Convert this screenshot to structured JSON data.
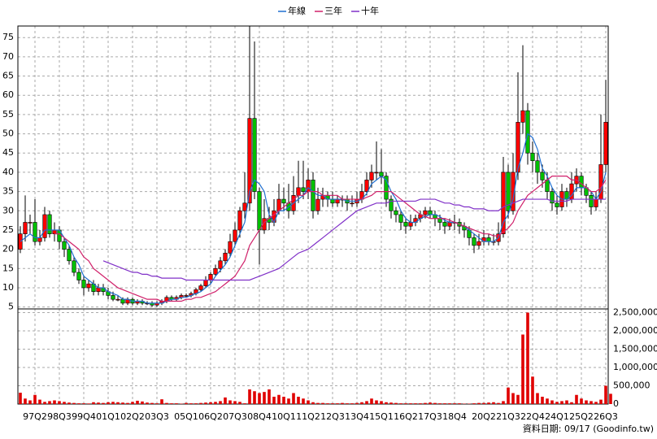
{
  "chart_data": {
    "type": "candlestick",
    "categories": [
      null,
      null,
      null,
      "97Q2",
      null,
      null,
      null,
      null,
      "98Q3",
      null,
      null,
      null,
      null,
      "99Q4",
      null,
      null,
      null,
      null,
      "01Q1",
      null,
      null,
      null,
      null,
      "02Q2",
      null,
      null,
      null,
      null,
      "03Q3",
      null,
      null,
      null,
      null,
      null,
      "05Q1",
      null,
      null,
      null,
      null,
      "06Q2",
      null,
      null,
      null,
      null,
      "07Q3",
      null,
      null,
      null,
      null,
      "08Q4",
      null,
      null,
      null,
      null,
      "10Q1",
      null,
      null,
      null,
      null,
      "11Q2",
      null,
      null,
      null,
      null,
      "12Q3",
      null,
      null,
      null,
      null,
      "13Q4",
      null,
      null,
      null,
      null,
      "15Q1",
      null,
      null,
      null,
      null,
      "16Q2",
      null,
      null,
      null,
      null,
      "17Q3",
      null,
      null,
      null,
      null,
      "18Q4",
      null,
      null,
      null,
      null,
      null,
      "20Q2",
      null,
      null,
      null,
      null,
      "21Q3",
      null,
      null,
      null,
      null,
      "22Q4",
      null,
      null,
      null,
      null,
      "24Q1",
      null,
      null,
      null,
      null,
      "25Q2",
      null,
      null,
      null,
      null,
      "26Q3"
    ],
    "ohlc": [
      [
        20,
        26,
        19,
        24
      ],
      [
        24,
        34,
        22,
        27
      ],
      [
        27,
        29,
        24,
        27
      ],
      [
        27,
        33,
        21,
        22
      ],
      [
        22,
        25,
        21,
        23
      ],
      [
        23,
        31,
        22,
        29
      ],
      [
        29,
        30,
        23,
        24
      ],
      [
        24,
        27,
        22,
        25
      ],
      [
        25,
        26,
        20,
        22
      ],
      [
        22,
        23,
        18,
        20
      ],
      [
        20,
        21,
        16,
        17
      ],
      [
        17,
        18,
        13,
        14
      ],
      [
        14,
        15,
        11,
        12
      ],
      [
        12,
        13,
        8,
        10
      ],
      [
        10,
        12,
        9,
        11
      ],
      [
        11,
        12,
        8,
        9
      ],
      [
        9,
        11,
        8,
        10
      ],
      [
        10,
        11,
        8,
        9
      ],
      [
        9,
        10,
        7,
        8
      ],
      [
        8,
        9,
        6.5,
        7
      ],
      [
        7,
        8,
        6.5,
        7
      ],
      [
        7,
        7.5,
        5.5,
        6
      ],
      [
        6,
        7.5,
        5.5,
        7
      ],
      [
        7,
        7.5,
        5.5,
        6
      ],
      [
        6,
        7,
        5.5,
        6.5
      ],
      [
        6.5,
        7,
        5.5,
        6
      ],
      [
        6,
        6.5,
        5.5,
        6
      ],
      [
        6,
        6.5,
        5,
        5.5
      ],
      [
        5.5,
        6.5,
        5,
        6
      ],
      [
        6,
        7,
        5.5,
        6.5
      ],
      [
        6.5,
        8,
        6,
        7.5
      ],
      [
        7.5,
        8,
        6.5,
        7
      ],
      [
        7,
        8,
        6.5,
        7.5
      ],
      [
        7.5,
        8.5,
        7,
        8
      ],
      [
        8,
        8.5,
        7.5,
        8
      ],
      [
        8,
        9,
        7.5,
        8.5
      ],
      [
        8.5,
        10,
        8,
        9.5
      ],
      [
        9.5,
        11,
        9,
        10.5
      ],
      [
        10.5,
        13,
        10,
        12
      ],
      [
        12,
        14,
        11,
        13.5
      ],
      [
        13.5,
        16,
        13,
        15
      ],
      [
        15,
        18,
        14,
        17
      ],
      [
        17,
        20,
        16,
        19
      ],
      [
        19,
        24,
        18,
        22
      ],
      [
        22,
        27,
        21,
        25
      ],
      [
        25,
        31,
        23,
        30
      ],
      [
        30,
        40,
        28,
        32
      ],
      [
        32,
        78,
        30,
        54
      ],
      [
        54,
        74,
        33,
        35
      ],
      [
        35,
        36,
        16,
        25
      ],
      [
        25,
        33,
        24,
        28
      ],
      [
        28,
        31,
        25,
        27
      ],
      [
        27,
        33,
        26,
        30
      ],
      [
        30,
        37,
        29,
        33
      ],
      [
        33,
        36,
        30,
        32
      ],
      [
        32,
        37,
        28,
        30
      ],
      [
        30,
        39,
        29,
        34
      ],
      [
        34,
        43,
        32,
        36
      ],
      [
        36,
        43,
        33,
        35
      ],
      [
        35,
        41,
        33,
        38
      ],
      [
        38,
        40,
        28,
        30
      ],
      [
        30,
        36,
        29,
        33
      ],
      [
        33,
        36,
        31,
        34
      ],
      [
        34,
        35,
        31,
        33
      ],
      [
        33,
        35,
        31,
        32
      ],
      [
        32,
        34,
        31,
        33
      ],
      [
        33,
        34,
        31,
        33
      ],
      [
        33,
        34,
        30,
        32
      ],
      [
        32,
        34,
        31,
        32
      ],
      [
        32,
        35,
        31,
        33
      ],
      [
        33,
        37,
        32,
        35
      ],
      [
        35,
        40,
        34,
        38
      ],
      [
        38,
        42,
        36,
        40
      ],
      [
        40,
        48,
        38,
        40
      ],
      [
        40,
        46,
        37,
        39
      ],
      [
        39,
        40,
        31,
        33
      ],
      [
        33,
        34,
        28,
        30
      ],
      [
        30,
        31,
        27,
        29
      ],
      [
        29,
        30,
        25,
        27
      ],
      [
        27,
        28,
        24,
        26
      ],
      [
        26,
        29,
        25,
        27
      ],
      [
        27,
        29,
        26,
        28
      ],
      [
        28,
        30,
        27,
        29
      ],
      [
        29,
        31,
        28,
        30
      ],
      [
        30,
        31,
        28,
        29
      ],
      [
        29,
        30,
        26,
        28
      ],
      [
        28,
        29,
        25,
        27
      ],
      [
        27,
        28,
        24,
        26
      ],
      [
        26,
        28,
        25,
        27
      ],
      [
        27,
        29,
        25,
        27
      ],
      [
        27,
        28,
        24,
        26
      ],
      [
        26,
        27,
        23,
        25
      ],
      [
        25,
        26,
        21,
        23
      ],
      [
        23,
        24,
        19,
        21
      ],
      [
        21,
        24,
        20,
        22
      ],
      [
        22,
        25,
        21,
        23
      ],
      [
        23,
        24,
        21,
        22
      ],
      [
        22,
        24,
        21,
        22
      ],
      [
        22,
        27,
        21,
        24
      ],
      [
        24,
        44,
        23,
        40
      ],
      [
        40,
        42,
        28,
        30
      ],
      [
        30,
        45,
        29,
        40
      ],
      [
        40,
        66,
        38,
        53
      ],
      [
        53,
        73,
        50,
        56
      ],
      [
        56,
        58,
        42,
        45
      ],
      [
        45,
        48,
        40,
        43
      ],
      [
        43,
        45,
        37,
        40
      ],
      [
        40,
        42,
        36,
        38
      ],
      [
        38,
        40,
        33,
        35
      ],
      [
        35,
        36,
        30,
        32
      ],
      [
        32,
        34,
        29,
        31
      ],
      [
        31,
        37,
        30,
        35
      ],
      [
        35,
        36,
        31,
        33
      ],
      [
        33,
        40,
        32,
        37
      ],
      [
        37,
        41,
        35,
        39
      ],
      [
        39,
        40,
        34,
        36
      ],
      [
        36,
        37,
        32,
        34
      ],
      [
        34,
        35,
        29,
        31
      ],
      [
        31,
        35,
        30,
        33
      ],
      [
        33,
        55,
        32,
        42
      ],
      [
        42,
        64,
        40,
        53
      ]
    ],
    "up_color": "#ff0000",
    "down_color": "#00c000",
    "series": [
      {
        "name": "年線",
        "color": "#1f6fd0",
        "values": [
          22,
          23,
          24,
          23,
          23,
          25,
          25,
          25,
          25,
          23,
          21,
          18,
          16,
          13,
          12,
          11,
          10,
          10,
          9,
          8.5,
          8,
          7,
          7,
          6.5,
          6.5,
          6.5,
          6,
          6,
          6,
          6,
          6.5,
          7,
          7,
          7.5,
          7.5,
          8,
          8.5,
          9,
          10,
          11,
          13,
          14.5,
          16,
          18,
          21,
          24,
          27,
          35,
          38,
          37,
          35,
          29,
          27,
          30,
          30,
          31,
          32,
          33,
          34,
          36,
          35,
          34,
          34,
          33,
          33,
          33,
          33,
          32.5,
          32.5,
          32.5,
          33,
          34.5,
          37,
          38,
          39,
          38,
          35,
          33,
          30,
          28,
          27,
          27,
          28,
          28.5,
          29,
          29,
          28.5,
          27.5,
          27,
          27,
          26.5,
          26,
          25,
          24,
          23,
          22,
          22,
          22,
          23,
          27,
          29,
          33,
          41,
          45,
          50,
          49,
          46,
          41,
          39,
          36,
          34,
          33,
          33,
          34,
          36,
          36,
          36,
          35,
          33,
          35,
          40
        ]
      },
      {
        "name": "三年",
        "color": "#d0206a",
        "values": [
          null,
          null,
          null,
          null,
          null,
          null,
          null,
          24,
          24,
          23,
          22,
          21,
          20,
          18,
          17,
          15,
          14,
          13,
          12,
          11,
          10,
          9.5,
          9,
          8.5,
          8,
          7.5,
          7,
          7,
          7,
          6.5,
          6.5,
          6.5,
          6.5,
          6.5,
          7,
          7,
          7.5,
          7.5,
          8,
          8.5,
          9,
          10,
          11,
          12,
          13,
          15,
          17,
          21,
          23,
          25,
          27,
          28,
          29,
          30,
          31,
          32,
          33,
          34,
          34,
          35,
          35,
          35,
          34,
          34,
          34,
          34,
          33,
          33,
          33,
          33,
          33,
          33.5,
          34,
          35,
          35,
          35,
          35,
          34,
          33,
          32,
          31,
          30,
          29,
          28.5,
          28,
          28,
          28,
          28,
          27.5,
          27,
          26.5,
          26,
          25.5,
          25,
          24.5,
          24,
          24,
          23.5,
          23.5,
          24.5,
          25.5,
          27,
          30,
          32,
          34,
          35,
          36,
          37,
          38,
          39,
          39,
          39,
          39,
          38,
          38,
          37,
          36,
          35,
          35,
          36,
          38
        ]
      },
      {
        "name": "十年",
        "color": "#8030c8",
        "values": [
          null,
          null,
          null,
          null,
          null,
          null,
          null,
          null,
          null,
          null,
          null,
          null,
          null,
          null,
          null,
          null,
          null,
          17,
          16.5,
          16,
          15.5,
          15,
          14.5,
          14,
          14,
          13.5,
          13.5,
          13,
          13,
          12.5,
          12.5,
          12.5,
          12.5,
          12.5,
          12,
          12,
          12,
          12,
          12,
          12,
          12,
          12,
          12,
          12,
          12,
          12,
          12,
          12,
          12.5,
          13,
          13.5,
          14,
          14.5,
          15,
          16,
          17,
          18,
          19,
          19.5,
          20,
          21,
          22,
          23,
          24,
          25,
          26,
          27,
          28,
          29,
          30,
          30.5,
          31,
          31.5,
          32,
          32,
          32,
          32.5,
          32.5,
          32.5,
          32.5,
          32.5,
          32.5,
          33,
          33,
          33,
          33,
          32.5,
          32,
          32,
          31.5,
          31.5,
          31,
          31,
          30.5,
          30.5,
          30.5,
          30,
          30,
          30,
          31,
          31.5,
          32,
          32.5,
          33,
          33,
          33,
          33,
          33,
          33,
          32.5,
          32.5,
          32.5,
          32.5,
          33,
          33,
          33,
          33,
          33,
          33,
          33,
          33
        ]
      }
    ],
    "ylim": [
      4.5,
      78
    ],
    "yticks": [
      5,
      10,
      15,
      20,
      25,
      30,
      35,
      40,
      45,
      50,
      55,
      60,
      65,
      70,
      75
    ],
    "volume": {
      "color": "#e00000",
      "values": [
        310000,
        150000,
        100000,
        250000,
        120000,
        60000,
        80000,
        100000,
        80000,
        60000,
        40000,
        30000,
        20000,
        20000,
        15000,
        50000,
        40000,
        30000,
        50000,
        60000,
        50000,
        40000,
        30000,
        60000,
        90000,
        70000,
        40000,
        30000,
        20000,
        130000,
        30000,
        20000,
        20000,
        10000,
        30000,
        20000,
        20000,
        30000,
        40000,
        50000,
        60000,
        80000,
        180000,
        100000,
        80000,
        60000,
        20000,
        400000,
        350000,
        300000,
        330000,
        400000,
        200000,
        250000,
        200000,
        150000,
        300000,
        200000,
        150000,
        100000,
        50000,
        30000,
        30000,
        20000,
        20000,
        20000,
        30000,
        20000,
        20000,
        30000,
        50000,
        80000,
        150000,
        100000,
        80000,
        50000,
        40000,
        30000,
        20000,
        20000,
        20000,
        20000,
        20000,
        30000,
        40000,
        30000,
        20000,
        20000,
        20000,
        20000,
        20000,
        10000,
        10000,
        20000,
        30000,
        30000,
        40000,
        50000,
        30000,
        80000,
        450000,
        300000,
        250000,
        1900000,
        2500000,
        750000,
        300000,
        200000,
        150000,
        100000,
        60000,
        80000,
        100000,
        50000,
        250000,
        150000,
        100000,
        80000,
        60000,
        120000,
        500000,
        280000
      ],
      "ylim": [
        0,
        2600000
      ],
      "yticks": [
        0,
        {
          "value": 500000,
          "label": "500,000"
        },
        {
          "value": 1000000,
          "label": "1,000,000"
        },
        {
          "value": 1500000,
          "label": "1,500,000"
        },
        {
          "value": 2000000,
          "label": "2,000,000"
        },
        {
          "value": 2500000,
          "label": "2,500,000"
        }
      ]
    },
    "grid": true,
    "legend": "top",
    "footer": "資料日期: 09/17  (Goodinfo.tw)"
  }
}
